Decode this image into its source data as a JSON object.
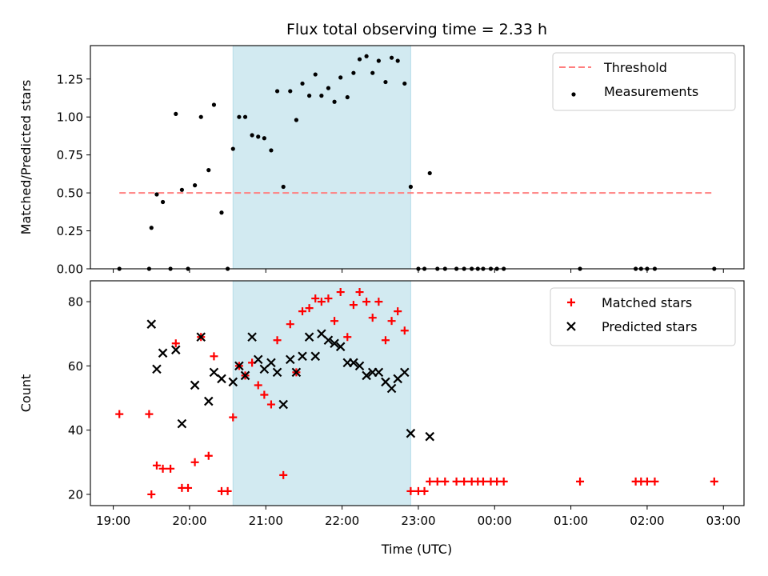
{
  "chart_data": {
    "title": "Flux total observing time = 2.33 h",
    "xlabel": "Time (UTC)",
    "x_ticks": [
      "19:00",
      "20:00",
      "21:00",
      "22:00",
      "23:00",
      "00:00",
      "01:00",
      "02:00",
      "03:00"
    ],
    "x_tick_hours": [
      19,
      20,
      21,
      22,
      23,
      24,
      25,
      26,
      27
    ],
    "xlim": [
      18.7,
      27.27
    ],
    "shaded_interval": {
      "start": 20.57,
      "end": 22.9,
      "color": "#add8e6"
    },
    "panels": [
      {
        "type": "scatter",
        "ylabel": "Matched/Predicted stars",
        "ylim": [
          0,
          1.47
        ],
        "y_ticks": [
          0.0,
          0.25,
          0.5,
          0.75,
          1.0,
          1.25
        ],
        "y_tick_labels": [
          "0.00",
          "0.25",
          "0.50",
          "0.75",
          "1.00",
          "1.25"
        ],
        "legend": {
          "position": "top-right",
          "entries": [
            "Threshold",
            "Measurements"
          ]
        },
        "threshold": {
          "name": "Threshold",
          "y": 0.5,
          "x_start": 19.08,
          "x_end": 26.88,
          "color": "#ff7f7f",
          "style": "dashed"
        },
        "series": [
          {
            "name": "Measurements",
            "marker": "dot",
            "color": "#000000",
            "points": [
              [
                19.08,
                0
              ],
              [
                19.47,
                0
              ],
              [
                19.5,
                0.27
              ],
              [
                19.57,
                0.49
              ],
              [
                19.65,
                0.44
              ],
              [
                19.75,
                0
              ],
              [
                19.82,
                1.02
              ],
              [
                19.9,
                0.52
              ],
              [
                19.98,
                0
              ],
              [
                20.07,
                0.55
              ],
              [
                20.15,
                1.0
              ],
              [
                20.25,
                0.65
              ],
              [
                20.32,
                1.08
              ],
              [
                20.42,
                0.37
              ],
              [
                20.5,
                0
              ],
              [
                20.57,
                0.79
              ],
              [
                20.65,
                1.0
              ],
              [
                20.73,
                1.0
              ],
              [
                20.82,
                0.88
              ],
              [
                20.9,
                0.87
              ],
              [
                20.98,
                0.86
              ],
              [
                21.07,
                0.78
              ],
              [
                21.15,
                1.17
              ],
              [
                21.23,
                0.54
              ],
              [
                21.32,
                1.17
              ],
              [
                21.4,
                0.98
              ],
              [
                21.48,
                1.22
              ],
              [
                21.57,
                1.14
              ],
              [
                21.65,
                1.28
              ],
              [
                21.73,
                1.14
              ],
              [
                21.82,
                1.19
              ],
              [
                21.9,
                1.1
              ],
              [
                21.98,
                1.26
              ],
              [
                22.07,
                1.13
              ],
              [
                22.15,
                1.29
              ],
              [
                22.23,
                1.38
              ],
              [
                22.32,
                1.4
              ],
              [
                22.4,
                1.29
              ],
              [
                22.48,
                1.37
              ],
              [
                22.57,
                1.23
              ],
              [
                22.65,
                1.39
              ],
              [
                22.73,
                1.37
              ],
              [
                22.82,
                1.22
              ],
              [
                22.9,
                0.54
              ],
              [
                23.0,
                0
              ],
              [
                23.08,
                0
              ],
              [
                23.15,
                0.63
              ],
              [
                23.25,
                0
              ],
              [
                23.35,
                0
              ],
              [
                23.5,
                0
              ],
              [
                23.6,
                0
              ],
              [
                23.7,
                0
              ],
              [
                23.78,
                0
              ],
              [
                23.85,
                0
              ],
              [
                23.95,
                0
              ],
              [
                24.03,
                0
              ],
              [
                24.12,
                0
              ],
              [
                25.12,
                0
              ],
              [
                25.85,
                0
              ],
              [
                25.92,
                0
              ],
              [
                26.0,
                0
              ],
              [
                26.1,
                0
              ],
              [
                26.88,
                0
              ]
            ]
          }
        ]
      },
      {
        "type": "scatter",
        "ylabel": "Count",
        "ylim": [
          16.5,
          86.5
        ],
        "y_ticks": [
          20,
          40,
          60,
          80
        ],
        "y_tick_labels": [
          "20",
          "40",
          "60",
          "80"
        ],
        "legend": {
          "position": "top-right",
          "entries": [
            "Matched stars",
            "Predicted stars"
          ]
        },
        "series": [
          {
            "name": "Matched stars",
            "marker": "plus",
            "color": "#ff0000",
            "points": [
              [
                19.08,
                45
              ],
              [
                19.47,
                45
              ],
              [
                19.5,
                20
              ],
              [
                19.57,
                29
              ],
              [
                19.65,
                28
              ],
              [
                19.75,
                28
              ],
              [
                19.82,
                67
              ],
              [
                19.9,
                22
              ],
              [
                19.98,
                22
              ],
              [
                20.07,
                30
              ],
              [
                20.15,
                69
              ],
              [
                20.25,
                32
              ],
              [
                20.32,
                63
              ],
              [
                20.42,
                21
              ],
              [
                20.5,
                21
              ],
              [
                20.57,
                44
              ],
              [
                20.65,
                60
              ],
              [
                20.73,
                57
              ],
              [
                20.82,
                61
              ],
              [
                20.9,
                54
              ],
              [
                20.98,
                51
              ],
              [
                21.07,
                48
              ],
              [
                21.15,
                68
              ],
              [
                21.23,
                26
              ],
              [
                21.32,
                73
              ],
              [
                21.4,
                58
              ],
              [
                21.48,
                77
              ],
              [
                21.57,
                78
              ],
              [
                21.65,
                81
              ],
              [
                21.73,
                80
              ],
              [
                21.82,
                81
              ],
              [
                21.9,
                74
              ],
              [
                21.98,
                83
              ],
              [
                22.07,
                69
              ],
              [
                22.15,
                79
              ],
              [
                22.23,
                83
              ],
              [
                22.32,
                80
              ],
              [
                22.4,
                75
              ],
              [
                22.48,
                80
              ],
              [
                22.57,
                68
              ],
              [
                22.65,
                74
              ],
              [
                22.73,
                77
              ],
              [
                22.82,
                71
              ],
              [
                22.9,
                21
              ],
              [
                23.0,
                21
              ],
              [
                23.08,
                21
              ],
              [
                23.15,
                24
              ],
              [
                23.25,
                24
              ],
              [
                23.35,
                24
              ],
              [
                23.5,
                24
              ],
              [
                23.6,
                24
              ],
              [
                23.7,
                24
              ],
              [
                23.78,
                24
              ],
              [
                23.85,
                24
              ],
              [
                23.95,
                24
              ],
              [
                24.03,
                24
              ],
              [
                24.12,
                24
              ],
              [
                25.12,
                24
              ],
              [
                25.85,
                24
              ],
              [
                25.92,
                24
              ],
              [
                26.0,
                24
              ],
              [
                26.1,
                24
              ],
              [
                26.88,
                24
              ]
            ]
          },
          {
            "name": "Predicted stars",
            "marker": "x",
            "color": "#000000",
            "points": [
              [
                19.5,
                73
              ],
              [
                19.57,
                59
              ],
              [
                19.65,
                64
              ],
              [
                19.82,
                65
              ],
              [
                19.9,
                42
              ],
              [
                20.07,
                54
              ],
              [
                20.15,
                69
              ],
              [
                20.25,
                49
              ],
              [
                20.32,
                58
              ],
              [
                20.42,
                56
              ],
              [
                20.57,
                55
              ],
              [
                20.65,
                60
              ],
              [
                20.73,
                57
              ],
              [
                20.82,
                69
              ],
              [
                20.9,
                62
              ],
              [
                20.98,
                59
              ],
              [
                21.07,
                61
              ],
              [
                21.15,
                58
              ],
              [
                21.23,
                48
              ],
              [
                21.32,
                62
              ],
              [
                21.4,
                58
              ],
              [
                21.48,
                63
              ],
              [
                21.57,
                69
              ],
              [
                21.65,
                63
              ],
              [
                21.73,
                70
              ],
              [
                21.82,
                68
              ],
              [
                21.9,
                67
              ],
              [
                21.98,
                66
              ],
              [
                22.07,
                61
              ],
              [
                22.15,
                61
              ],
              [
                22.23,
                60
              ],
              [
                22.32,
                57
              ],
              [
                22.4,
                58
              ],
              [
                22.48,
                58
              ],
              [
                22.57,
                55
              ],
              [
                22.65,
                53
              ],
              [
                22.73,
                56
              ],
              [
                22.82,
                58
              ],
              [
                22.9,
                39
              ],
              [
                23.15,
                38
              ]
            ]
          }
        ]
      }
    ]
  }
}
